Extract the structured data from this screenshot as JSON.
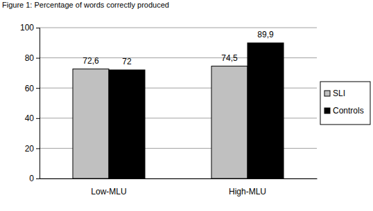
{
  "chart_data": {
    "type": "bar",
    "title": "Figure 1: Percentage of words correctly produced",
    "categories": [
      "Low-MLU",
      "High-MLU"
    ],
    "series": [
      {
        "name": "SLI",
        "color": "#c0c0c0",
        "values": [
          72.6,
          74.5
        ],
        "value_labels": [
          "72,6",
          "74,5"
        ]
      },
      {
        "name": "Controls",
        "color": "#000000",
        "values": [
          72,
          89.9
        ],
        "value_labels": [
          "72",
          "89,9"
        ]
      }
    ],
    "ylim": [
      0,
      100
    ],
    "yticks": [
      0,
      20,
      40,
      60,
      80,
      100
    ],
    "grid": true,
    "legend": "right",
    "data_labels": true
  }
}
